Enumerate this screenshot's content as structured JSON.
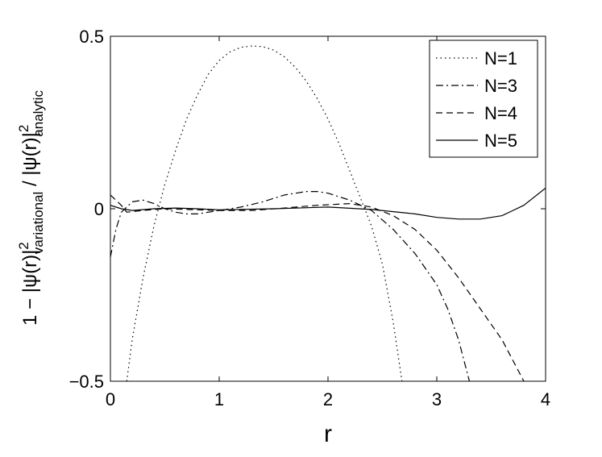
{
  "chart_data": {
    "type": "line",
    "xlabel": "r",
    "ylabel": [
      "1 −  |ψ(r)|",
      "2",
      "variational",
      "  /  |ψ(r)|",
      "2",
      "analytic"
    ],
    "xlim": [
      0,
      4
    ],
    "ylim": [
      -0.5,
      0.5
    ],
    "xticks": [
      0,
      1,
      2,
      3,
      4
    ],
    "yticks": [
      {
        "value": -0.5,
        "label": "−0.5"
      },
      0,
      0.5
    ],
    "legend": "northeast",
    "series": [
      {
        "name": "N=1",
        "color": "#000000",
        "dash": "1.5 4",
        "x": [
          0.15,
          0.2,
          0.3,
          0.4,
          0.5,
          0.6,
          0.7,
          0.8,
          0.9,
          1.0,
          1.1,
          1.2,
          1.3,
          1.4,
          1.5,
          1.6,
          1.7,
          1.8,
          1.9,
          2.0,
          2.1,
          2.2,
          2.3,
          2.4,
          2.5,
          2.6,
          2.68
        ],
        "values": [
          -0.5,
          -0.38,
          -0.2,
          -0.05,
          0.07,
          0.17,
          0.26,
          0.33,
          0.39,
          0.43,
          0.455,
          0.468,
          0.472,
          0.47,
          0.46,
          0.44,
          0.41,
          0.37,
          0.32,
          0.26,
          0.19,
          0.11,
          0.03,
          -0.05,
          -0.16,
          -0.33,
          -0.5
        ]
      },
      {
        "name": "N=3",
        "color": "#000000",
        "dash": "9 4 2 4",
        "x": [
          0,
          0.05,
          0.1,
          0.2,
          0.3,
          0.4,
          0.5,
          0.6,
          0.7,
          0.8,
          0.9,
          1.0,
          1.2,
          1.4,
          1.6,
          1.8,
          1.9,
          2.0,
          2.2,
          2.4,
          2.6,
          2.8,
          3.0,
          3.1,
          3.2,
          3.3
        ],
        "values": [
          -0.14,
          -0.06,
          -0.01,
          0.02,
          0.025,
          0.015,
          0.0,
          -0.01,
          -0.015,
          -0.015,
          -0.01,
          -0.005,
          0.005,
          0.02,
          0.04,
          0.05,
          0.05,
          0.045,
          0.025,
          -0.005,
          -0.06,
          -0.13,
          -0.22,
          -0.29,
          -0.38,
          -0.5
        ]
      },
      {
        "name": "N=4",
        "color": "#000000",
        "dash": "8 5",
        "x": [
          0,
          0.1,
          0.15,
          0.3,
          0.5,
          0.8,
          1.0,
          1.3,
          1.6,
          1.9,
          2.2,
          2.4,
          2.6,
          2.8,
          3.0,
          3.2,
          3.4,
          3.6,
          3.8
        ],
        "values": [
          0.04,
          0.01,
          -0.01,
          -0.005,
          0.0,
          -0.003,
          -0.005,
          -0.005,
          0.002,
          0.01,
          0.015,
          0.005,
          -0.02,
          -0.06,
          -0.12,
          -0.2,
          -0.29,
          -0.38,
          -0.5
        ]
      },
      {
        "name": "N=5",
        "color": "#000000",
        "dash": "none",
        "x": [
          0,
          0.1,
          0.2,
          0.4,
          0.6,
          0.8,
          1.0,
          1.5,
          2.0,
          2.4,
          2.8,
          3.0,
          3.2,
          3.4,
          3.6,
          3.8,
          4.0
        ],
        "values": [
          0.01,
          0.0,
          -0.005,
          0.0,
          0.002,
          0.0,
          -0.003,
          0.0,
          0.005,
          -0.002,
          -0.015,
          -0.025,
          -0.03,
          -0.03,
          -0.02,
          0.01,
          0.06
        ]
      }
    ]
  }
}
